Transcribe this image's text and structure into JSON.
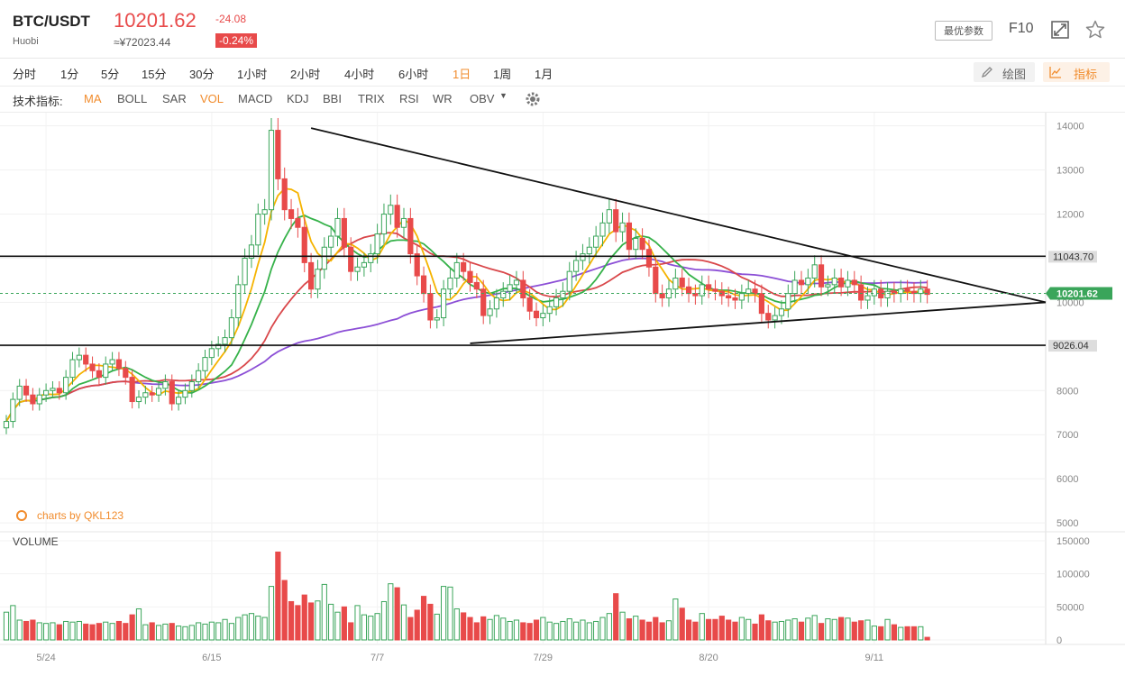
{
  "header": {
    "symbol": "BTC/USDT",
    "exchange": "Huobi",
    "price": "10201.62",
    "price_cny": "≈¥72023.44",
    "change": "-24.08",
    "change_pct": "-0.24%",
    "optimal_params_label": "最优参数",
    "f10_label": "F10",
    "icons": [
      "fullscreen-icon",
      "star-icon"
    ]
  },
  "timeframes": {
    "items": [
      "分时",
      "1分",
      "5分",
      "15分",
      "30分",
      "1小时",
      "2小时",
      "4小时",
      "6小时",
      "1日",
      "1周",
      "1月"
    ],
    "active": "1日",
    "draw_label": "绘图",
    "indicator_label": "指标"
  },
  "indicators": {
    "label": "技术指标:",
    "items": [
      "MA",
      "BOLL",
      "SAR",
      "VOL",
      "MACD",
      "KDJ",
      "BBI",
      "TRIX",
      "RSI",
      "WR",
      "OBV"
    ],
    "active": [
      "MA",
      "VOL"
    ]
  },
  "watermark": "charts by QKL123",
  "volume_label": "VOLUME",
  "colors": {
    "up": "#3aa55a",
    "down": "#e84a4a",
    "accent": "#f18c2d",
    "ma5": "#f5b300",
    "ma10": "#36b24a",
    "ma20": "#d9474a",
    "ma60": "#8c4fd6",
    "current": "#3aa55a"
  },
  "chart_data": {
    "type": "candlestick",
    "price_axis": {
      "ticks": [
        14000,
        13000,
        12000,
        11000,
        10000,
        9000,
        8000,
        7000,
        6000,
        5000
      ],
      "ylim": [
        4900,
        14300
      ]
    },
    "volume_axis": {
      "ticks": [
        "150000",
        "100000",
        "50000",
        "0"
      ],
      "ylim": [
        0,
        150000
      ]
    },
    "x_labels": [
      "5/24",
      "6/15",
      "7/7",
      "7/29",
      "8/20",
      "9/11"
    ],
    "levels": [
      {
        "label": "11043.70",
        "value": 11043.7
      },
      {
        "label": "9026.04",
        "value": 9026.04
      }
    ],
    "current_price": {
      "label": "10201.62",
      "value": 10201.62
    },
    "closes": [
      7300,
      7800,
      8100,
      7900,
      7700,
      7900,
      8000,
      8050,
      7950,
      8300,
      8700,
      8800,
      8600,
      8450,
      8300,
      8600,
      8700,
      8500,
      8300,
      7750,
      7850,
      7950,
      7900,
      8050,
      8200,
      7700,
      7850,
      8000,
      8200,
      8450,
      8750,
      8950,
      9050,
      9200,
      9650,
      10400,
      11000,
      11300,
      12000,
      12100,
      13900,
      12800,
      12100,
      11900,
      11700,
      10900,
      10300,
      10750,
      11250,
      11500,
      11900,
      11250,
      10700,
      10800,
      10900,
      11100,
      11550,
      12000,
      12200,
      11700,
      11900,
      11100,
      10600,
      10200,
      9600,
      9650,
      10300,
      10550,
      10900,
      10700,
      10450,
      10300,
      9700,
      9850,
      10100,
      10250,
      10400,
      10500,
      10100,
      9800,
      9650,
      9750,
      9900,
      10100,
      10250,
      10700,
      10950,
      11100,
      11250,
      11500,
      11800,
      12100,
      11600,
      11800,
      11200,
      11450,
      11200,
      10800,
      10200,
      10100,
      10300,
      10550,
      10350,
      10200,
      10150,
      10400,
      10300,
      10250,
      10150,
      10100,
      10050,
      10200,
      10300,
      10200,
      9750,
      9600,
      9700,
      9850,
      10200,
      10500,
      10400,
      10550,
      10850,
      10350,
      10400,
      10550,
      10350,
      10500,
      10400,
      10050,
      10150,
      10300,
      10100,
      10250,
      10200,
      10300,
      10250,
      10200,
      10300,
      10180
    ],
    "volumes": [
      42000,
      52000,
      30000,
      28000,
      30000,
      26000,
      25000,
      26000,
      23000,
      28000,
      27000,
      28000,
      24000,
      23000,
      25000,
      27000,
      25000,
      28000,
      25000,
      38000,
      47000,
      23000,
      26000,
      22000,
      24000,
      25000,
      21000,
      20000,
      22000,
      26000,
      24000,
      27000,
      26000,
      31000,
      25000,
      34000,
      38000,
      40000,
      36000,
      34000,
      81000,
      133000,
      90000,
      58000,
      52000,
      68000,
      56000,
      59000,
      84000,
      54000,
      42000,
      50000,
      26000,
      52000,
      38000,
      36000,
      40000,
      58000,
      85000,
      79000,
      53000,
      34000,
      45000,
      66000,
      54000,
      39000,
      81000,
      80000,
      47000,
      41000,
      34000,
      26000,
      35000,
      31000,
      37000,
      33000,
      28000,
      30000,
      26000,
      25000,
      30000,
      34000,
      27000,
      25000,
      28000,
      32000,
      27000,
      30000,
      26000,
      28000,
      34000,
      40000,
      70000,
      42000,
      32000,
      36000,
      30000,
      27000,
      34000,
      26000,
      29000,
      62000,
      48000,
      30000,
      27000,
      40000,
      31000,
      31000,
      36000,
      30000,
      27000,
      34000,
      31000,
      24000,
      38000,
      29000,
      27000,
      28000,
      30000,
      32000,
      27000,
      33000,
      37000,
      25000,
      32000,
      31000,
      34000,
      33000,
      27000,
      29000,
      30000,
      21000,
      20000,
      31000,
      23000,
      19000,
      20000,
      20000,
      20000,
      4000
    ]
  }
}
